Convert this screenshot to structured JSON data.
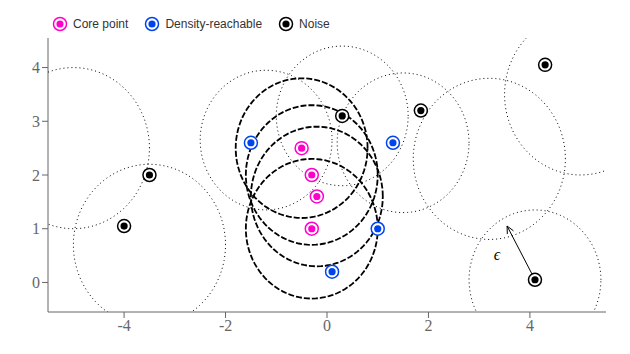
{
  "chart_data": {
    "type": "scatter",
    "series": [
      {
        "name": "Core point",
        "color": "#FF00CC",
        "values": [
          [
            -0.5,
            2.5
          ],
          [
            -0.3,
            2.0
          ],
          [
            -0.2,
            1.6
          ],
          [
            -0.3,
            1.0
          ]
        ]
      },
      {
        "name": "Density-reachable",
        "color": "#0044EE",
        "values": [
          [
            -1.5,
            2.6
          ],
          [
            1.3,
            2.6
          ],
          [
            1.0,
            1.0
          ],
          [
            0.1,
            0.2
          ]
        ]
      },
      {
        "name": "Noise",
        "color": "#000000",
        "values": [
          [
            -4.0,
            1.05
          ],
          [
            -3.5,
            2.0
          ],
          [
            0.3,
            3.1
          ],
          [
            1.85,
            3.2
          ],
          [
            4.3,
            4.05
          ],
          [
            4.1,
            0.05
          ]
        ]
      }
    ],
    "circles": [
      {
        "line_style": "dotted",
        "color": "#000000",
        "values": [
          [
            -5.0,
            2.5,
            1.5
          ],
          [
            -3.5,
            0.7,
            1.5
          ],
          [
            -1.2,
            2.65,
            1.3
          ],
          [
            0.3,
            3.1,
            1.3
          ],
          [
            1.5,
            2.6,
            1.3
          ],
          [
            3.2,
            2.3,
            1.5
          ],
          [
            4.1,
            0.05,
            1.3
          ],
          [
            5.0,
            3.5,
            1.5
          ]
        ]
      },
      {
        "line_style": "dashed",
        "color": "#000000",
        "values": [
          [
            -0.5,
            2.5,
            1.3
          ],
          [
            -0.3,
            2.0,
            1.3
          ],
          [
            -0.2,
            1.6,
            1.3
          ],
          [
            -0.3,
            1.0,
            1.3
          ]
        ]
      }
    ],
    "annotations": [
      {
        "text": "ϵ",
        "x": 3.35,
        "y": 0.52,
        "arrow_from": [
          4.1,
          0.05
        ],
        "arrow_to": [
          3.55,
          1.05
        ]
      }
    ],
    "xlim": [
      -5.5,
      5.5
    ],
    "ylim": [
      -0.55,
      4.55
    ],
    "xticks": [
      -4,
      -2,
      0,
      2,
      4
    ],
    "yticks": [
      0,
      1,
      2,
      3,
      4
    ],
    "grid": false,
    "legend": "upper left"
  }
}
